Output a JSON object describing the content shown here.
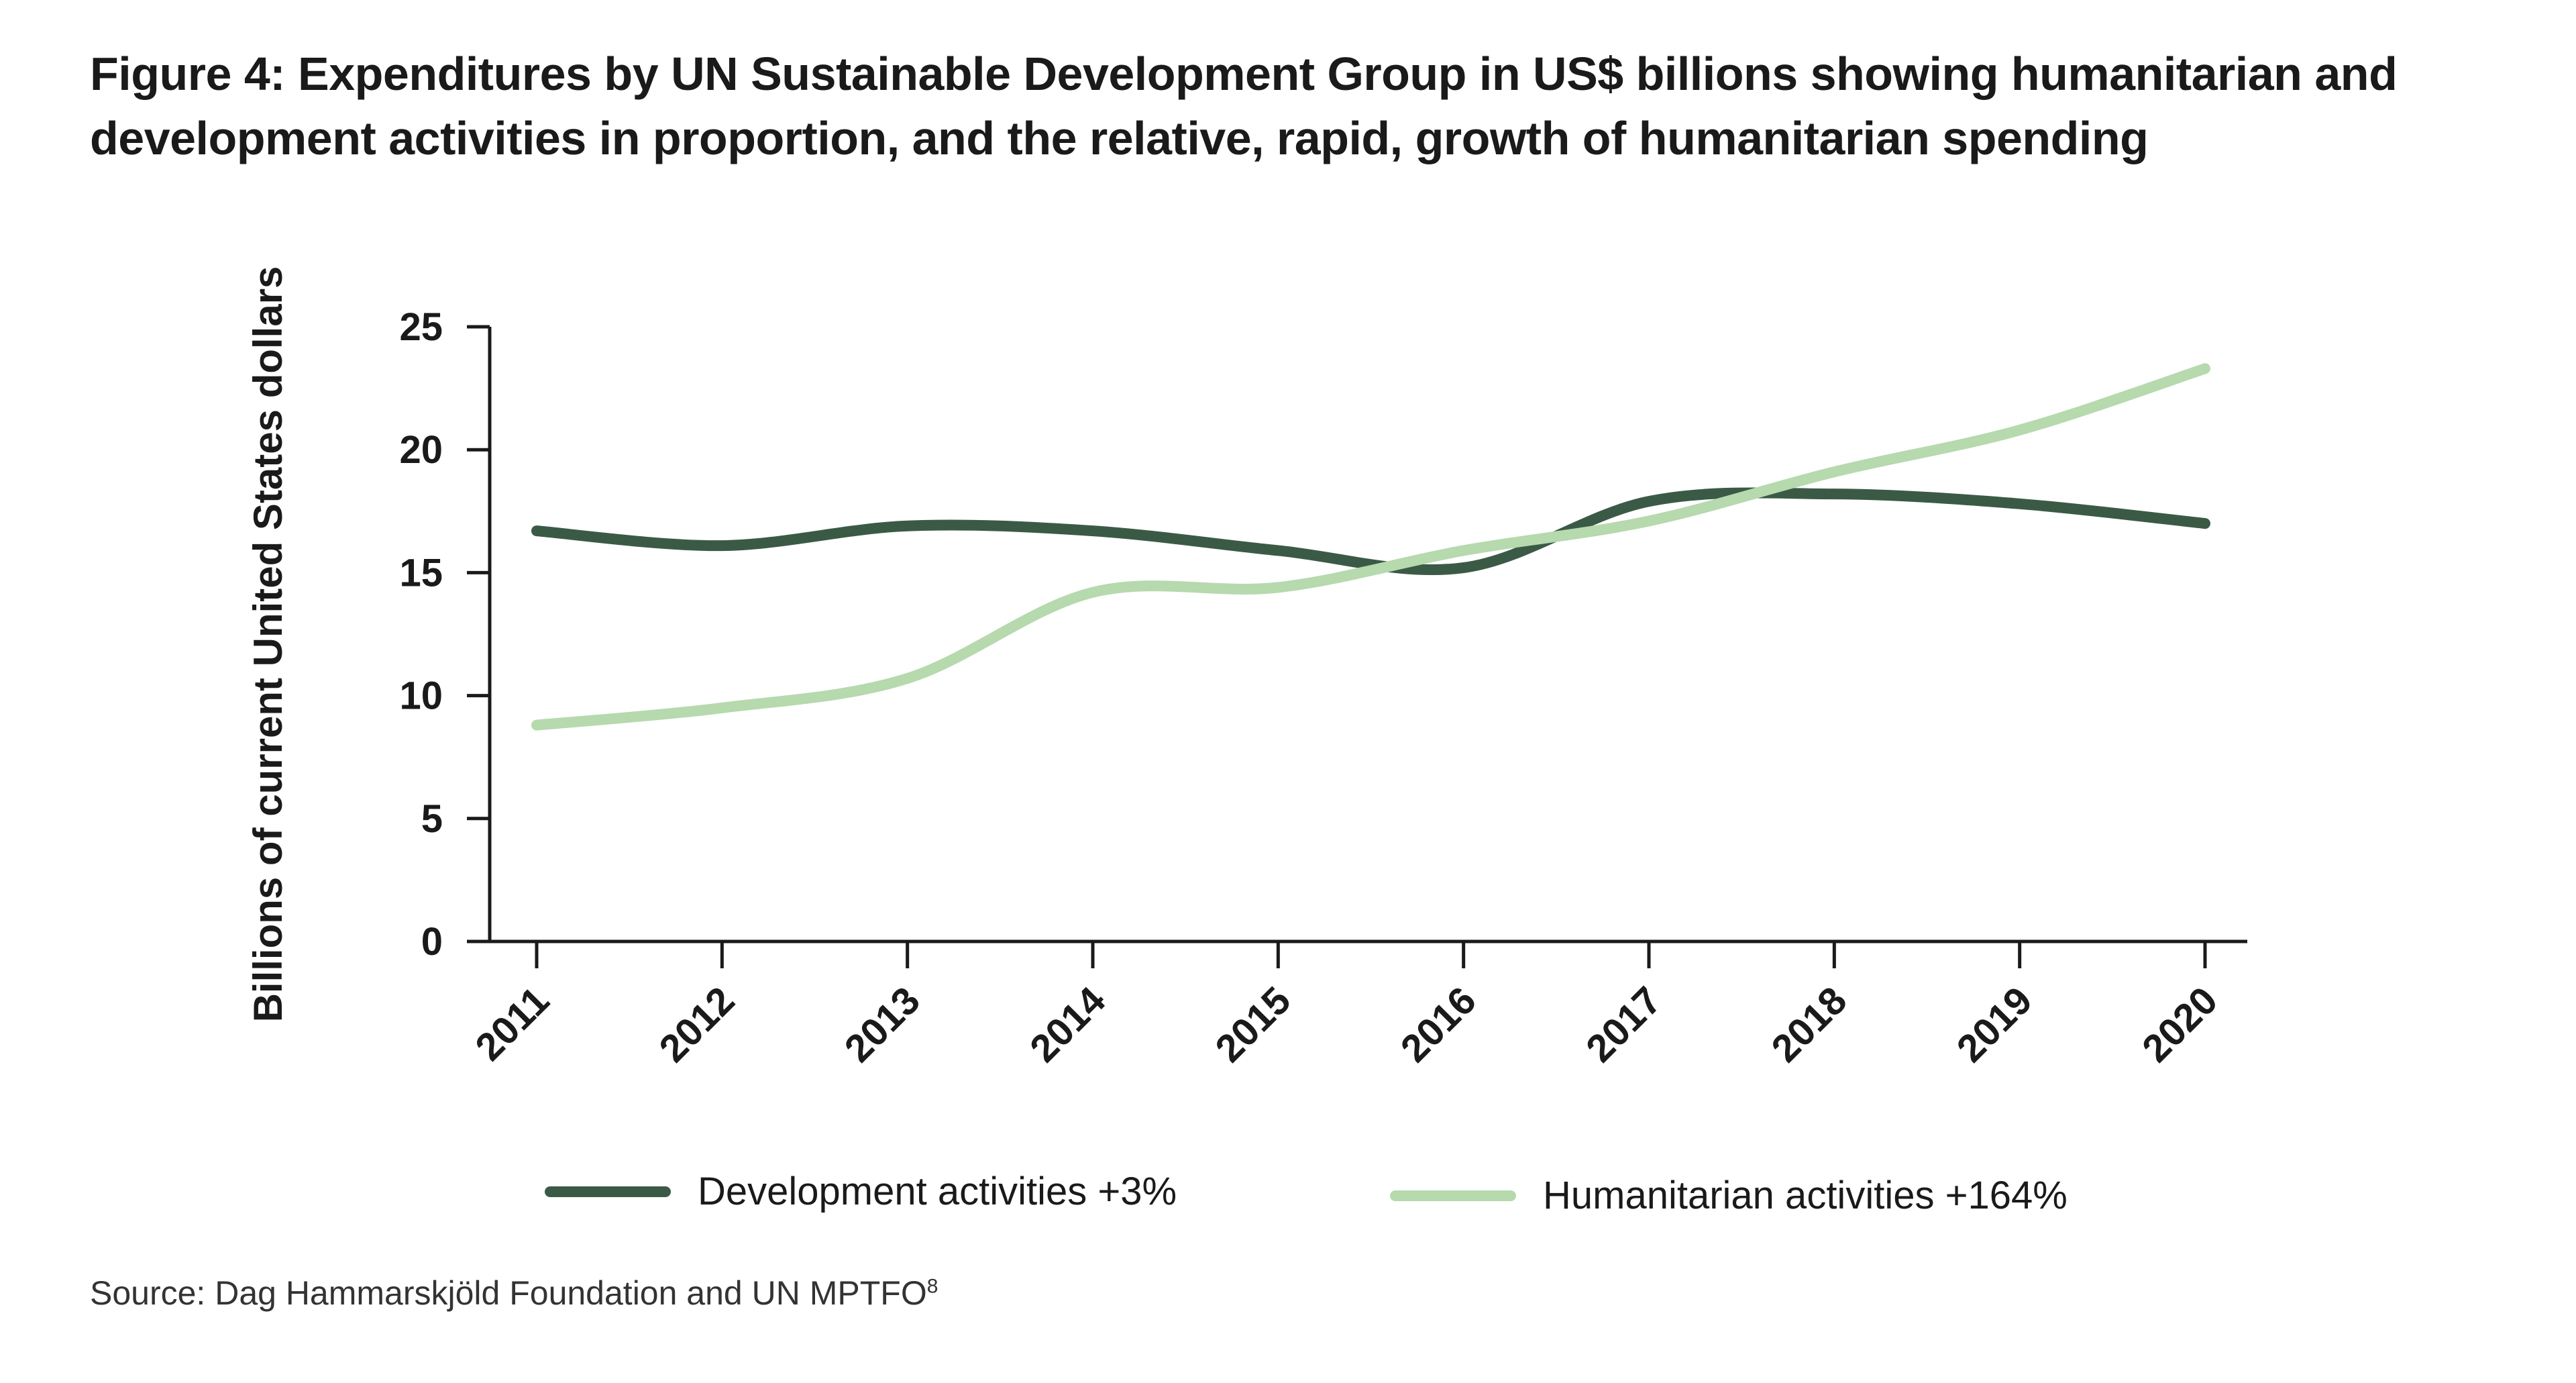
{
  "title": "Figure 4: Expenditures by UN Sustainable Development Group in US$ billions showing humanitarian and development activities in proportion, and the relative, rapid, growth of humanitarian spending",
  "source": {
    "text": "Source: Dag Hammarskjöld Foundation and UN MPTFO",
    "footnote_marker": "8"
  },
  "colors": {
    "development": "#3b5a46",
    "humanitarian": "#b6d9ae"
  },
  "chart_data": {
    "type": "line",
    "title": "Figure 4: Expenditures by UN Sustainable Development Group in US$ billions showing humanitarian and development activities in proportion, and the relative, rapid, growth of humanitarian spending",
    "xlabel": "",
    "ylabel": "Billions of current United States dollars",
    "ylim": [
      0,
      25
    ],
    "yticks": [
      "0",
      "5",
      "10",
      "15",
      "20",
      "25"
    ],
    "categories": [
      "2011",
      "2012",
      "2013",
      "2014",
      "2015",
      "2016",
      "2017",
      "2018",
      "2019",
      "2020"
    ],
    "series": [
      {
        "name": "Development activities +3%",
        "color": "#3b5a46",
        "values": [
          16.7,
          16.1,
          16.9,
          16.7,
          15.9,
          15.2,
          17.9,
          18.2,
          17.8,
          17.0
        ]
      },
      {
        "name": "Humanitarian activities +164%",
        "color": "#b6d9ae",
        "values": [
          8.8,
          9.5,
          10.7,
          14.2,
          14.4,
          15.9,
          17.1,
          19.1,
          20.8,
          23.3
        ]
      }
    ],
    "grid": false,
    "legend_position": "bottom"
  }
}
